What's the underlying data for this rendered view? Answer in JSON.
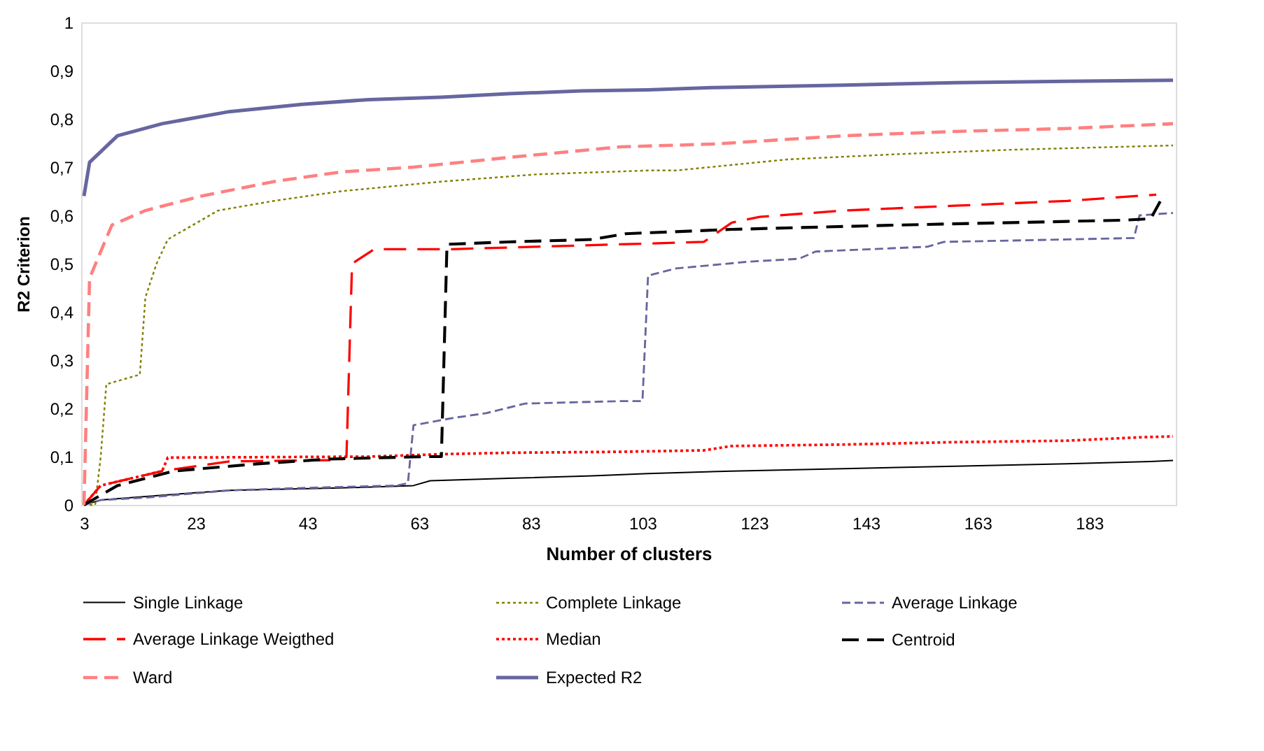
{
  "chart_data": {
    "type": "line",
    "xlabel": "Number of clusters",
    "ylabel": "R2 Criterion",
    "xlim": [
      2.5,
      198.5
    ],
    "xticks": [
      3,
      23,
      43,
      63,
      83,
      103,
      123,
      143,
      163,
      183
    ],
    "ylim": [
      0,
      1
    ],
    "yticks": [
      0,
      {
        "value": 0.1,
        "label": "0,1"
      },
      {
        "value": 0.2,
        "label": "0,2"
      },
      {
        "value": 0.3,
        "label": "0,3"
      },
      {
        "value": 0.4,
        "label": "0,4"
      },
      {
        "value": 0.5,
        "label": "0,5"
      },
      {
        "value": 0.6,
        "label": "0,6"
      },
      {
        "value": 0.7,
        "label": "0,7"
      },
      {
        "value": 0.8,
        "label": "0,8"
      },
      {
        "value": 0.9,
        "label": "0,9"
      },
      1
    ],
    "grid": false,
    "legend": "bottom",
    "marker": "none",
    "series": [
      {
        "name": "Single Linkage",
        "color": "#000000",
        "line_style": "solid",
        "x": [
          3,
          6,
          17,
          29,
          49,
          62,
          65,
          79,
          94,
          104,
          119,
          139,
          159,
          179,
          194,
          198
        ],
        "values": [
          0,
          0.01,
          0.02,
          0.03,
          0.035,
          0.04,
          0.05,
          0.055,
          0.06,
          0.065,
          0.07,
          0.075,
          0.08,
          0.085,
          0.09,
          0.092
        ]
      },
      {
        "name": "Complete Linkage",
        "color": "#808000",
        "line_style": "dotted",
        "x": [
          3,
          5,
          6,
          7,
          13,
          14,
          16,
          18,
          27,
          37,
          49,
          67,
          84,
          104,
          109,
          129,
          149,
          169,
          198
        ],
        "values": [
          0,
          0,
          0.1,
          0.25,
          0.27,
          0.43,
          0.5,
          0.55,
          0.61,
          0.63,
          0.65,
          0.67,
          0.685,
          0.693,
          0.693,
          0.716,
          0.727,
          0.736,
          0.745
        ]
      },
      {
        "name": "Average Linkage",
        "color": "#6666a0",
        "line_style": "dashed",
        "x": [
          3,
          6,
          14,
          29,
          42,
          59,
          61,
          62,
          69,
          75,
          82,
          99,
          103,
          104,
          109,
          122,
          131,
          134,
          154,
          157,
          191,
          192,
          198
        ],
        "values": [
          0,
          0.01,
          0.015,
          0.03,
          0.035,
          0.04,
          0.045,
          0.165,
          0.18,
          0.19,
          0.21,
          0.215,
          0.215,
          0.475,
          0.49,
          0.504,
          0.51,
          0.525,
          0.535,
          0.545,
          0.553,
          0.6,
          0.605
        ]
      },
      {
        "name": "Average Linkage Weigthed",
        "color": "#ff0000",
        "line_style": "dashed",
        "x": [
          3,
          6,
          17,
          29,
          49,
          50,
          51,
          55,
          69,
          84,
          114,
          119,
          124,
          139,
          159,
          179,
          195
        ],
        "values": [
          0,
          0.04,
          0.07,
          0.09,
          0.093,
          0.1,
          0.5,
          0.53,
          0.53,
          0.535,
          0.545,
          0.585,
          0.597,
          0.61,
          0.62,
          0.63,
          0.643
        ]
      },
      {
        "name": "Median",
        "color": "#ff0000",
        "line_style": "dotted",
        "x": [
          3,
          6,
          17,
          18,
          54,
          67,
          79,
          99,
          114,
          119,
          139,
          159,
          179,
          192,
          198
        ],
        "values": [
          0,
          0.04,
          0.07,
          0.098,
          0.1,
          0.105,
          0.108,
          0.11,
          0.113,
          0.122,
          0.125,
          0.13,
          0.133,
          0.14,
          0.142
        ]
      },
      {
        "name": "Centroid",
        "color": "#000000",
        "line_style": "dashed",
        "x": [
          3,
          9,
          19,
          34,
          47,
          64,
          67,
          68,
          79,
          94,
          100,
          119,
          149,
          169,
          189,
          194,
          196
        ],
        "values": [
          0,
          0.04,
          0.07,
          0.085,
          0.095,
          0.1,
          0.1,
          0.54,
          0.545,
          0.55,
          0.562,
          0.571,
          0.58,
          0.585,
          0.59,
          0.593,
          0.635
        ]
      },
      {
        "name": "Ward",
        "color": "#ff8080",
        "line_style": "dashed",
        "x": [
          3,
          4,
          8,
          14,
          24,
          37,
          49,
          62,
          79,
          99,
          116,
          139,
          159,
          179,
          198
        ],
        "values": [
          0,
          0.47,
          0.58,
          0.61,
          0.64,
          0.67,
          0.69,
          0.7,
          0.72,
          0.742,
          0.748,
          0.765,
          0.774,
          0.78,
          0.79
        ]
      },
      {
        "name": "Expected R2",
        "color": "#6666a0",
        "line_style": "solid",
        "x": [
          3,
          4,
          9,
          17,
          29,
          42,
          54,
          67,
          79,
          92,
          104,
          116,
          139,
          159,
          179,
          198
        ],
        "values": [
          0.64,
          0.71,
          0.765,
          0.79,
          0.815,
          0.83,
          0.84,
          0.845,
          0.852,
          0.858,
          0.86,
          0.865,
          0.87,
          0.875,
          0.878,
          0.88
        ]
      }
    ]
  }
}
